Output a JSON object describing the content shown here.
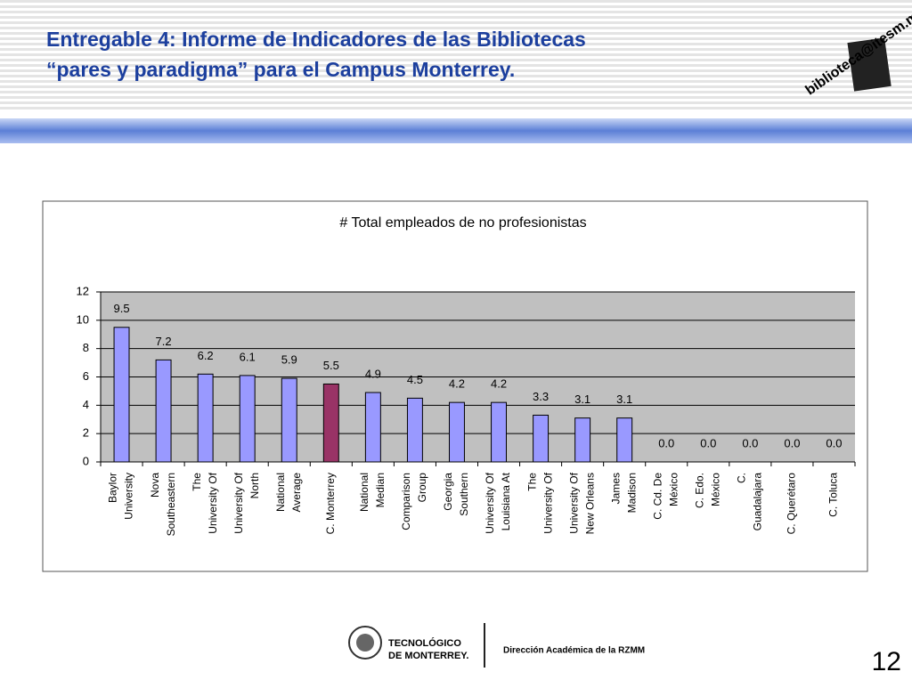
{
  "header": {
    "title_lines": [
      "Entregable 4: Informe de Indicadores de las Bibliotecas",
      "“pares y paradigma” para el Campus Monterrey."
    ],
    "logo_text": "biblioteca@itesm.mx"
  },
  "chart_data": {
    "type": "bar",
    "title": "# Total empleados de no profesionistas",
    "categories": [
      [
        "Baylor",
        "University"
      ],
      [
        "Nova",
        "Southeastern"
      ],
      [
        "The",
        "University Of"
      ],
      [
        "University Of",
        "North"
      ],
      [
        "National",
        "Average"
      ],
      [
        "C. Monterrey"
      ],
      [
        "National",
        "Median"
      ],
      [
        "Comparison",
        "Group"
      ],
      [
        "Georgia",
        "Southern"
      ],
      [
        "University Of",
        "Louisiana At"
      ],
      [
        "The",
        "University Of"
      ],
      [
        "University Of",
        "New Orleans"
      ],
      [
        "James",
        "Madison"
      ],
      [
        "C. Cd. De",
        "México"
      ],
      [
        "C. Edo.",
        "México"
      ],
      [
        "C.",
        "Guadalajara"
      ],
      [
        "C. Querétaro"
      ],
      [
        "C. Toluca"
      ]
    ],
    "values": [
      9.5,
      7.2,
      6.2,
      6.1,
      5.9,
      5.5,
      4.9,
      4.5,
      4.2,
      4.2,
      3.3,
      3.1,
      3.1,
      0,
      0,
      0,
      0,
      0
    ],
    "value_labels": [
      "9.5",
      "7.2",
      "6.2",
      "6.1",
      "5.9",
      "5.5",
      "4.9",
      "4.5",
      "4.2",
      "4.2",
      "3.3",
      "3.1",
      "3.1",
      "0.0",
      "0.0",
      "0.0",
      "0.0",
      "0.0"
    ],
    "colors": [
      "#9999ff",
      "#9999ff",
      "#9999ff",
      "#9999ff",
      "#9999ff",
      "#993366",
      "#9999ff",
      "#9999ff",
      "#9999ff",
      "#9999ff",
      "#9999ff",
      "#9999ff",
      "#9999ff",
      "#9999ff",
      "#9999ff",
      "#9999ff",
      "#9999ff",
      "#9999ff"
    ],
    "ylim": [
      0,
      12
    ],
    "yticks": [
      0,
      2,
      4,
      6,
      8,
      10,
      12
    ],
    "grid": true
  },
  "footer": {
    "logo_lines": [
      "TECNOLÓGICO",
      "DE MONTERREY."
    ],
    "department": "Dirección Académica de la RZMM",
    "page_number": "12"
  }
}
